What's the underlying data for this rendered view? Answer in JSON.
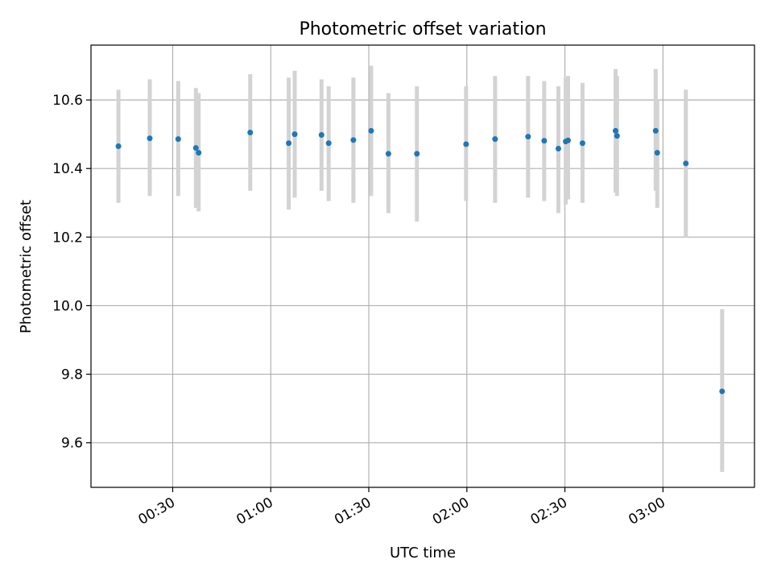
{
  "chart_data": {
    "type": "scatter",
    "title": "Photometric offset variation",
    "xlabel": "UTC time",
    "ylabel": "Photometric offset",
    "xlim": [
      "00:05",
      "03:28"
    ],
    "ylim": [
      9.47,
      10.76
    ],
    "x_ticks": [
      "00:30",
      "01:00",
      "01:30",
      "02:00",
      "02:30",
      "03:00"
    ],
    "y_ticks": [
      "9.6",
      "9.8",
      "10.0",
      "10.2",
      "10.4",
      "10.6"
    ],
    "grid": true,
    "points": [
      {
        "t": "00:13:24",
        "y": 10.465,
        "err_low": 10.3,
        "err_high": 10.63
      },
      {
        "t": "00:22:59",
        "y": 10.488,
        "err_low": 10.32,
        "err_high": 10.66
      },
      {
        "t": "00:31:41",
        "y": 10.486,
        "err_low": 10.32,
        "err_high": 10.655
      },
      {
        "t": "00:37:06",
        "y": 10.46,
        "err_low": 10.285,
        "err_high": 10.635
      },
      {
        "t": "00:37:56",
        "y": 10.446,
        "err_low": 10.275,
        "err_high": 10.62
      },
      {
        "t": "00:53:43",
        "y": 10.505,
        "err_low": 10.335,
        "err_high": 10.675
      },
      {
        "t": "01:05:30",
        "y": 10.474,
        "err_low": 10.28,
        "err_high": 10.665
      },
      {
        "t": "01:07:20",
        "y": 10.5,
        "err_low": 10.315,
        "err_high": 10.685
      },
      {
        "t": "01:15:32",
        "y": 10.498,
        "err_low": 10.335,
        "err_high": 10.66
      },
      {
        "t": "01:17:43",
        "y": 10.474,
        "err_low": 10.305,
        "err_high": 10.64
      },
      {
        "t": "01:25:17",
        "y": 10.483,
        "err_low": 10.3,
        "err_high": 10.665
      },
      {
        "t": "01:30:43",
        "y": 10.51,
        "err_low": 10.32,
        "err_high": 10.7
      },
      {
        "t": "01:36:00",
        "y": 10.443,
        "err_low": 10.27,
        "err_high": 10.62
      },
      {
        "t": "01:44:43",
        "y": 10.443,
        "err_low": 10.245,
        "err_high": 10.64
      },
      {
        "t": "01:59:46",
        "y": 10.471,
        "err_low": 10.305,
        "err_high": 10.64
      },
      {
        "t": "02:08:38",
        "y": 10.486,
        "err_low": 10.3,
        "err_high": 10.67
      },
      {
        "t": "02:18:44",
        "y": 10.493,
        "err_low": 10.315,
        "err_high": 10.67
      },
      {
        "t": "02:23:40",
        "y": 10.481,
        "err_low": 10.305,
        "err_high": 10.655
      },
      {
        "t": "02:28:00",
        "y": 10.458,
        "err_low": 10.27,
        "err_high": 10.64
      },
      {
        "t": "02:30:15",
        "y": 10.479,
        "err_low": 10.295,
        "err_high": 10.665
      },
      {
        "t": "02:30:58",
        "y": 10.482,
        "err_low": 10.31,
        "err_high": 10.67
      },
      {
        "t": "02:35:23",
        "y": 10.474,
        "err_low": 10.3,
        "err_high": 10.65
      },
      {
        "t": "02:45:30",
        "y": 10.51,
        "err_low": 10.33,
        "err_high": 10.69
      },
      {
        "t": "02:45:57",
        "y": 10.495,
        "err_low": 10.32,
        "err_high": 10.67
      },
      {
        "t": "02:57:46",
        "y": 10.51,
        "err_low": 10.335,
        "err_high": 10.69
      },
      {
        "t": "02:58:15",
        "y": 10.446,
        "err_low": 10.285,
        "err_high": 10.6
      },
      {
        "t": "03:07:00",
        "y": 10.415,
        "err_low": 10.2,
        "err_high": 10.63
      },
      {
        "t": "03:18:06",
        "y": 9.75,
        "err_low": 9.515,
        "err_high": 9.99
      }
    ],
    "colors": {
      "marker": "#1f77b4",
      "errorbar": "#d3d3d3",
      "grid": "#b0b0b0",
      "axes": "#000000"
    }
  }
}
